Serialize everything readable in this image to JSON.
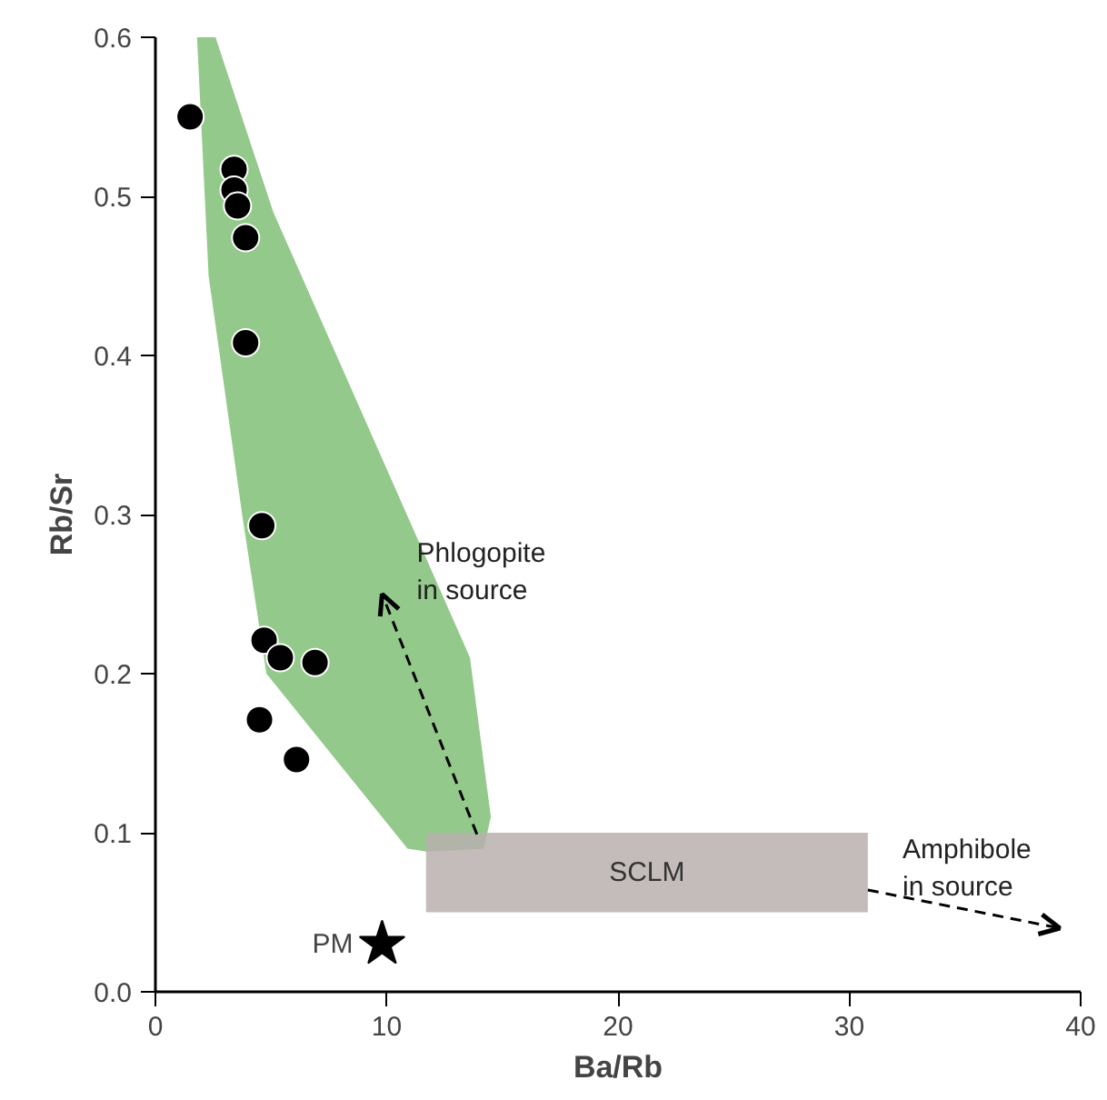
{
  "chart_data": {
    "type": "scatter",
    "xlabel": "Ba/Rb",
    "ylabel": "Rb/Sr",
    "xlim": [
      0,
      40
    ],
    "ylim": [
      0,
      0.6
    ],
    "xticks": [
      0,
      10,
      20,
      30,
      40
    ],
    "yticks": [
      {
        "value": 0,
        "label": "0.0"
      },
      {
        "value": 0.1,
        "label": "0.1"
      },
      {
        "value": 0.2,
        "label": "0.2"
      },
      {
        "value": 0.3,
        "label": "0.3"
      },
      {
        "value": 0.4,
        "label": "0.4"
      },
      {
        "value": 0.5,
        "label": "0.5"
      },
      {
        "value": 0.6,
        "label": "0.6"
      }
    ],
    "grid": false,
    "series": [
      {
        "type": "area",
        "color": "#93c98a",
        "x": [
          1.8,
          2.6,
          5.1,
          13.6,
          14.5,
          14.2,
          11.8,
          10.9,
          4.8,
          3.75,
          2.3
        ],
        "values": [
          0.6,
          0.6,
          0.49,
          0.21,
          0.11,
          0.09,
          0.088,
          0.09,
          0.2,
          0.3,
          0.45
        ]
      },
      {
        "type": "area",
        "name": "SCLM",
        "color": "#b8b0ae",
        "x": [
          11.7,
          30.8,
          30.8,
          11.7
        ],
        "values": [
          0.05,
          0.05,
          0.1,
          0.1
        ]
      },
      {
        "marker": "circle",
        "color": "#000000",
        "x": [
          1.5,
          3.4,
          3.4,
          3.55,
          3.9,
          3.9,
          4.6,
          4.7,
          5.4,
          6.9,
          4.5,
          6.1
        ],
        "values": [
          0.55,
          0.517,
          0.504,
          0.494,
          0.474,
          0.408,
          0.293,
          0.221,
          0.21,
          0.207,
          0.171,
          0.146
        ]
      },
      {
        "name": "PM",
        "marker": "star",
        "color": "#000000",
        "x": [
          9.8
        ],
        "values": [
          0.03
        ]
      },
      {
        "type": "line",
        "line_style": "dashed",
        "color": "#000000",
        "x": [
          13.9,
          9.8
        ],
        "values": [
          0.099,
          0.25
        ]
      },
      {
        "type": "line",
        "line_style": "dashed",
        "color": "#000000",
        "x": [
          30.8,
          39.1
        ],
        "values": [
          0.064,
          0.04
        ]
      }
    ],
    "annotations": [
      "Phlogopite\nin source",
      "Amphibole\nin source"
    ]
  }
}
